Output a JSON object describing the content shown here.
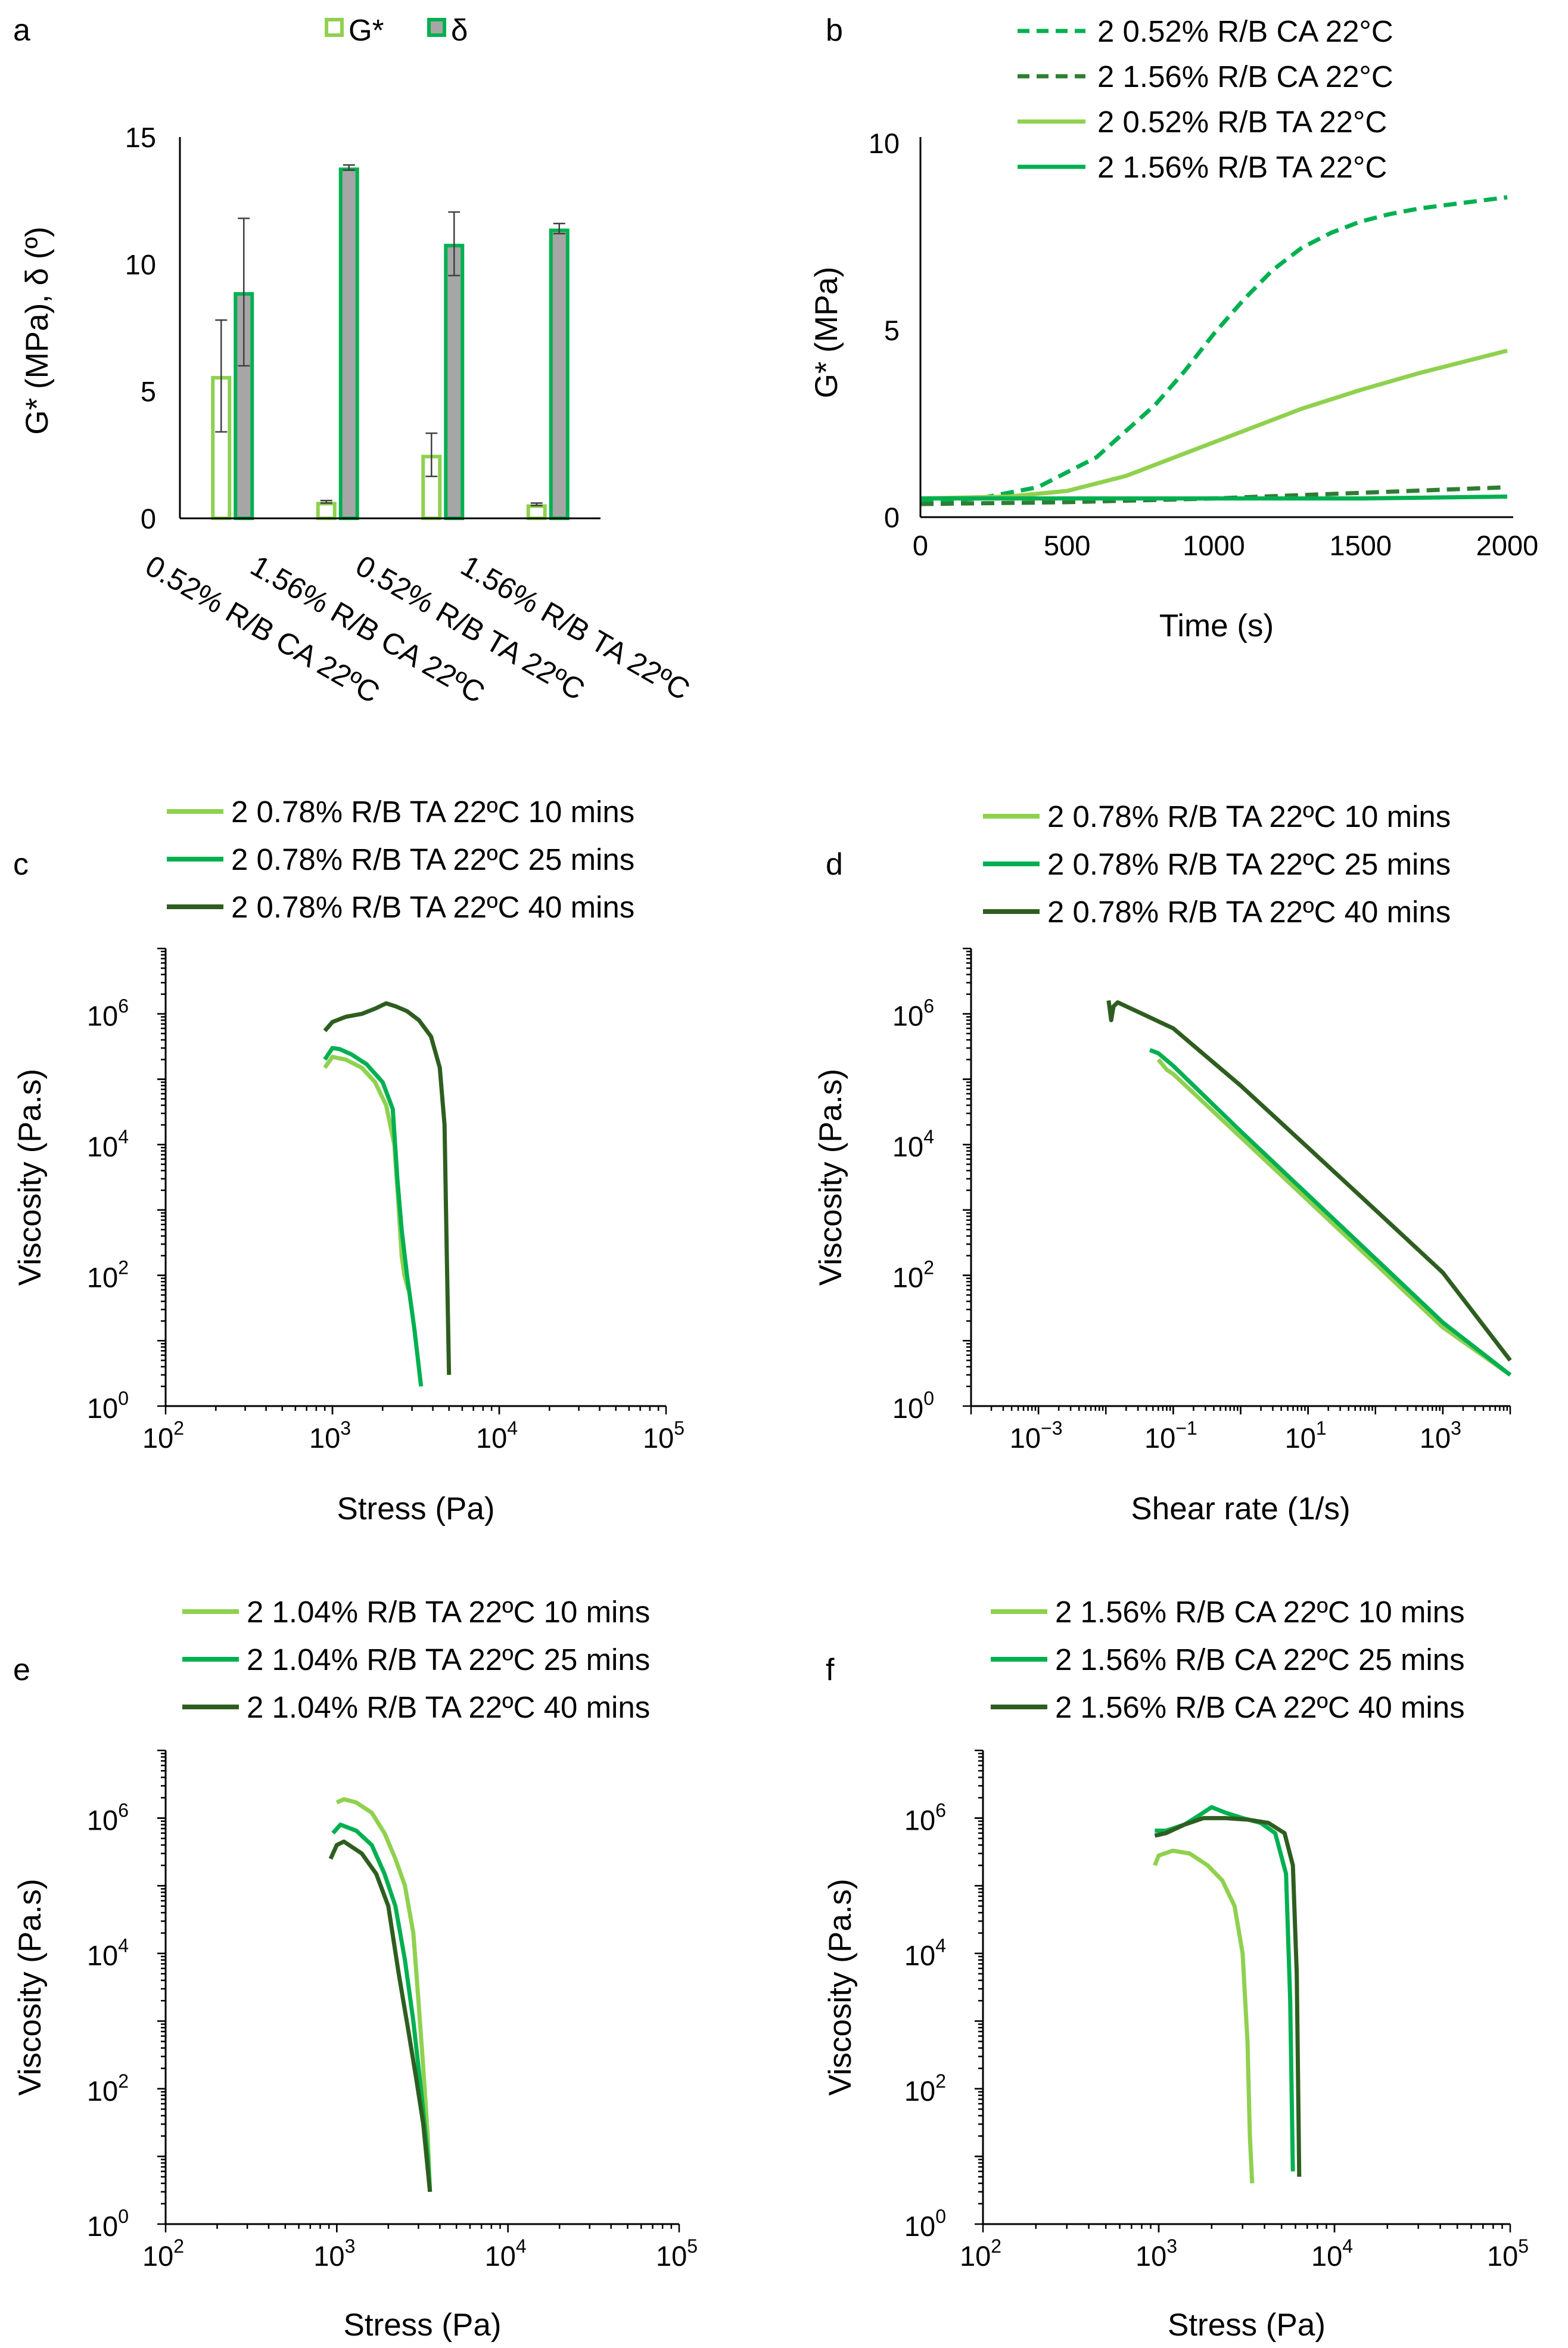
{
  "colors": {
    "light": "#8fd14f",
    "mid": "#00b050",
    "dark": "#2e5e1f",
    "bar_fill_g": "#ffffff",
    "bar_fill_d": "#a6a6a6",
    "error": "#404040"
  },
  "chart_data": [
    {
      "panel": "a",
      "type": "bar",
      "title": "",
      "xlabel": "",
      "ylabel": "G* (MPa), δ (º)",
      "ylim": [
        0,
        15
      ],
      "yticks": [
        "0",
        "5",
        "10",
        "15"
      ],
      "categories": [
        "0.52% R/B CA 22ºC",
        "1.56% R/B CA 22ºC",
        "0.52% R/B TA 22ºC",
        "1.56% R/B TA 22ºC"
      ],
      "series": [
        {
          "name": "G*",
          "values": [
            5.6,
            0.65,
            2.5,
            0.55
          ],
          "errors": [
            2.2,
            0.05,
            0.85,
            0.05
          ]
        },
        {
          "name": "δ",
          "values": [
            8.9,
            13.8,
            10.8,
            11.4
          ],
          "errors": [
            2.9,
            0.1,
            1.25,
            0.2
          ]
        }
      ]
    },
    {
      "panel": "b",
      "type": "line",
      "xlabel": "Time (s)",
      "ylabel": "G* (MPa)",
      "xlim": [
        0,
        2000
      ],
      "ylim": [
        0,
        10
      ],
      "xticks": [
        "0",
        "500",
        "1000",
        "1500",
        "2000"
      ],
      "yticks": [
        "0",
        "5",
        "10"
      ],
      "series": [
        {
          "name": "2 0.52% R/B CA 22°C",
          "style": "dashed",
          "x": [
            0,
            200,
            400,
            600,
            800,
            900,
            1000,
            1100,
            1200,
            1300,
            1400,
            1500,
            1600,
            1700,
            1800,
            1900,
            2000
          ],
          "y": [
            0.4,
            0.5,
            0.8,
            1.6,
            3.0,
            3.9,
            4.9,
            5.8,
            6.6,
            7.2,
            7.6,
            7.9,
            8.1,
            8.25,
            8.35,
            8.45,
            8.55
          ]
        },
        {
          "name": "2 1.56% R/B CA 22°C",
          "style": "dashed",
          "x": [
            0,
            500,
            1000,
            1500,
            2000
          ],
          "y": [
            0.35,
            0.4,
            0.5,
            0.65,
            0.8
          ]
        },
        {
          "name": "2 0.52% R/B TA 22°C",
          "style": "solid",
          "x": [
            0,
            300,
            500,
            700,
            900,
            1100,
            1300,
            1500,
            1700,
            1900,
            2000
          ],
          "y": [
            0.5,
            0.55,
            0.7,
            1.1,
            1.7,
            2.3,
            2.9,
            3.4,
            3.85,
            4.25,
            4.45
          ]
        },
        {
          "name": "2 1.56% R/B TA 22°C",
          "style": "solid",
          "x": [
            0,
            500,
            1000,
            1500,
            2000
          ],
          "y": [
            0.5,
            0.5,
            0.5,
            0.5,
            0.55
          ]
        }
      ]
    },
    {
      "panel": "c",
      "type": "line",
      "scale": "log",
      "xlabel": "Stress (Pa)",
      "ylabel": "Viscosity (Pa.s)",
      "xlim_exp": [
        2,
        5
      ],
      "ylim_exp": [
        0,
        7
      ],
      "xticks": [
        "10",
        "10",
        "10",
        "10"
      ],
      "xtick_exps": [
        "2",
        "3",
        "4",
        "5"
      ],
      "yticks": [
        "10",
        "10",
        "10",
        "10"
      ],
      "ytick_exps": [
        "0",
        "2",
        "4",
        "6"
      ],
      "series": [
        {
          "name": "2 0.78% R/B TA 22ºC 10 mins",
          "x": [
            900,
            1000,
            1200,
            1500,
            1800,
            2100,
            2350,
            2500,
            2600,
            2700,
            2850
          ],
          "y": [
            150000,
            220000,
            200000,
            150000,
            90000,
            40000,
            10000,
            1000,
            200,
            100,
            60
          ]
        },
        {
          "name": "2 0.78% R/B TA 22ºC 25 mins",
          "x": [
            900,
            1000,
            1100,
            1300,
            1600,
            2000,
            2300,
            2450,
            2600,
            2800,
            3100,
            3400
          ],
          "y": [
            200000,
            300000,
            290000,
            240000,
            170000,
            90000,
            35000,
            3000,
            500,
            100,
            15,
            2
          ]
        },
        {
          "name": "2 0.78% R/B TA 22ºC 40 mins",
          "x": [
            900,
            1000,
            1200,
            1500,
            1800,
            2100,
            2400,
            2800,
            3300,
            3900,
            4400,
            4700,
            4850,
            5000
          ],
          "y": [
            550000,
            750000,
            900000,
            1000000,
            1200000,
            1450000,
            1300000,
            1100000,
            800000,
            450000,
            150000,
            20000,
            200,
            3
          ]
        }
      ]
    },
    {
      "panel": "d",
      "type": "line",
      "scale": "log",
      "xlabel": "Shear rate (1/s)",
      "ylabel": "Viscosity (Pa.s)",
      "xlim_exp": [
        -4,
        4
      ],
      "ylim_exp": [
        0,
        7
      ],
      "xticks": [
        "10",
        "10",
        "10",
        "10"
      ],
      "xtick_exps": [
        "−3",
        "−1",
        "1",
        "3"
      ],
      "yticks": [
        "10",
        "10",
        "10",
        "10"
      ],
      "ytick_exps": [
        "0",
        "2",
        "4",
        "6"
      ],
      "series": [
        {
          "name": "2 0.78% R/B TA 22ºC 10 mins",
          "x": [
            0.06,
            0.08,
            0.1,
            1,
            10,
            100,
            1000,
            10000
          ],
          "y": [
            200000,
            140000,
            120000,
            13000,
            1400,
            150,
            16,
            3
          ]
        },
        {
          "name": "2 0.78% R/B TA 22ºC 25 mins",
          "x": [
            0.045,
            0.06,
            0.1,
            1,
            10,
            100,
            1000,
            10000
          ],
          "y": [
            280000,
            250000,
            160000,
            16000,
            1700,
            180,
            19,
            3
          ]
        },
        {
          "name": "2 0.78% R/B TA 22ºC 40 mins",
          "x": [
            0.011,
            0.012,
            0.013,
            0.015,
            0.1,
            1,
            10,
            100,
            1000,
            10000
          ],
          "y": [
            1600000,
            800000,
            1300000,
            1500000,
            600000,
            80000,
            9000,
            1000,
            110,
            5
          ]
        }
      ]
    },
    {
      "panel": "e",
      "type": "line",
      "scale": "log",
      "xlabel": "Stress (Pa)",
      "ylabel": "Viscosity (Pa.s)",
      "xlim_exp": [
        2,
        5
      ],
      "ylim_exp": [
        0,
        7
      ],
      "xticks": [
        "10",
        "10",
        "10",
        "10"
      ],
      "xtick_exps": [
        "2",
        "3",
        "4",
        "5"
      ],
      "yticks": [
        "10",
        "10",
        "10",
        "10"
      ],
      "ytick_exps": [
        "0",
        "2",
        "4",
        "6"
      ],
      "series": [
        {
          "name": "2 1.04% R/B TA 22ºC 10 mins",
          "x": [
            1000,
            1100,
            1300,
            1600,
            1900,
            2200,
            2500,
            2800,
            3000,
            3200,
            3400,
            3500
          ],
          "y": [
            1700000,
            1900000,
            1700000,
            1200000,
            600000,
            250000,
            100000,
            20000,
            2000,
            200,
            20,
            3
          ]
        },
        {
          "name": "2 1.04% R/B TA 22ºC 25 mins",
          "x": [
            950,
            1050,
            1300,
            1600,
            1900,
            2200,
            2500,
            2800,
            3100,
            3400,
            3500
          ],
          "y": [
            600000,
            800000,
            650000,
            400000,
            150000,
            50000,
            8000,
            1000,
            100,
            10,
            3
          ]
        },
        {
          "name": "2 1.04% R/B TA 22ºC 40 mins",
          "x": [
            920,
            1000,
            1100,
            1400,
            1700,
            2000,
            2300,
            2600,
            2900,
            3200,
            3500
          ],
          "y": [
            250000,
            400000,
            450000,
            300000,
            150000,
            50000,
            5000,
            800,
            150,
            30,
            3
          ]
        }
      ]
    },
    {
      "panel": "f",
      "type": "line",
      "scale": "log",
      "xlabel": "Stress (Pa)",
      "ylabel": "Viscosity (Pa.s)",
      "xlim_exp": [
        2,
        5
      ],
      "ylim_exp": [
        0,
        7
      ],
      "xticks": [
        "10",
        "10",
        "10",
        "10"
      ],
      "xtick_exps": [
        "2",
        "3",
        "4",
        "5"
      ],
      "yticks": [
        "10",
        "10",
        "10",
        "10"
      ],
      "ytick_exps": [
        "0",
        "2",
        "4",
        "6"
      ],
      "series": [
        {
          "name": "2 1.56% R/B CA 22ºC 10 mins",
          "x": [
            950,
            1000,
            1200,
            1500,
            1900,
            2300,
            2700,
            3000,
            3200,
            3300,
            3400
          ],
          "y": [
            200000,
            280000,
            330000,
            300000,
            200000,
            120000,
            50000,
            10000,
            500,
            20,
            4
          ]
        },
        {
          "name": "2 1.56% R/B CA 22ºC 25 mins",
          "x": [
            950,
            1100,
            1400,
            1700,
            2000,
            2400,
            3000,
            3800,
            4600,
            5300,
            5600,
            5800
          ],
          "y": [
            650000,
            650000,
            800000,
            1100000,
            1450000,
            1200000,
            1000000,
            850000,
            600000,
            150000,
            2000,
            6
          ]
        },
        {
          "name": "2 1.56% R/B CA 22ºC 40 mins",
          "x": [
            950,
            1100,
            1400,
            1800,
            2400,
            3200,
            4200,
            5200,
            5800,
            6100,
            6250,
            6300
          ],
          "y": [
            550000,
            600000,
            800000,
            1000000,
            1000000,
            950000,
            850000,
            600000,
            200000,
            5000,
            30,
            5
          ]
        }
      ]
    }
  ]
}
